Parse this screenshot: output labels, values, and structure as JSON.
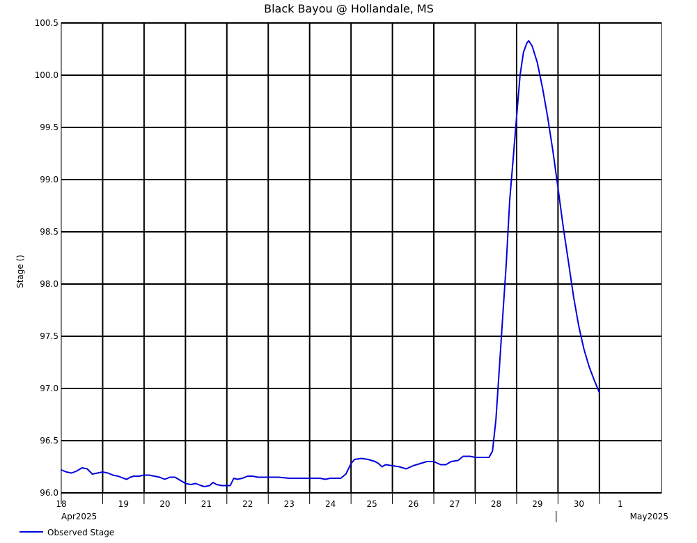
{
  "chart_data": {
    "type": "line",
    "title": "Black Bayou @ Hollandale, MS",
    "xlabel": "",
    "ylabel": "Stage ()",
    "x_range": [
      "2025-04-18T00:00",
      "2025-05-02T12:00"
    ],
    "ylim": [
      96.0,
      100.5
    ],
    "y_ticks": [
      "96.0",
      "96.5",
      "97.0",
      "97.5",
      "98.0",
      "98.5",
      "99.0",
      "99.5",
      "100.0",
      "100.5"
    ],
    "x_ticks": [
      "18",
      "19",
      "20",
      "21",
      "22",
      "23",
      "24",
      "25",
      "26",
      "27",
      "28",
      "29",
      "30",
      "1"
    ],
    "month_labels": [
      "Apr2025",
      "May2025"
    ],
    "grid": true,
    "legend_position": "bottom-left",
    "series": [
      {
        "name": "Observed Stage",
        "color": "#0000dd",
        "points": [
          [
            "2025-04-18T00:00",
            96.22
          ],
          [
            "2025-04-18T03:00",
            96.2
          ],
          [
            "2025-04-18T06:00",
            96.19
          ],
          [
            "2025-04-18T09:00",
            96.21
          ],
          [
            "2025-04-18T12:00",
            96.24
          ],
          [
            "2025-04-18T15:00",
            96.23
          ],
          [
            "2025-04-18T18:00",
            96.18
          ],
          [
            "2025-04-18T21:00",
            96.19
          ],
          [
            "2025-04-19T00:00",
            96.2
          ],
          [
            "2025-04-19T03:00",
            96.19
          ],
          [
            "2025-04-19T06:00",
            96.17
          ],
          [
            "2025-04-19T09:00",
            96.16
          ],
          [
            "2025-04-19T12:00",
            96.14
          ],
          [
            "2025-04-19T14:00",
            96.13
          ],
          [
            "2025-04-19T16:00",
            96.15
          ],
          [
            "2025-04-19T18:00",
            96.16
          ],
          [
            "2025-04-19T21:00",
            96.16
          ],
          [
            "2025-04-20T00:00",
            96.17
          ],
          [
            "2025-04-20T03:00",
            96.17
          ],
          [
            "2025-04-20T06:00",
            96.16
          ],
          [
            "2025-04-20T09:00",
            96.15
          ],
          [
            "2025-04-20T12:00",
            96.13
          ],
          [
            "2025-04-20T15:00",
            96.15
          ],
          [
            "2025-04-20T18:00",
            96.15
          ],
          [
            "2025-04-20T21:00",
            96.12
          ],
          [
            "2025-04-21T00:00",
            96.09
          ],
          [
            "2025-04-21T03:00",
            96.08
          ],
          [
            "2025-04-21T06:00",
            96.09
          ],
          [
            "2025-04-21T09:00",
            96.07
          ],
          [
            "2025-04-21T11:00",
            96.06
          ],
          [
            "2025-04-21T14:00",
            96.07
          ],
          [
            "2025-04-21T16:00",
            96.1
          ],
          [
            "2025-04-21T18:00",
            96.08
          ],
          [
            "2025-04-21T21:00",
            96.07
          ],
          [
            "2025-04-22T00:00",
            96.07
          ],
          [
            "2025-04-22T02:00",
            96.07
          ],
          [
            "2025-04-22T04:00",
            96.14
          ],
          [
            "2025-04-22T06:00",
            96.13
          ],
          [
            "2025-04-22T09:00",
            96.14
          ],
          [
            "2025-04-22T12:00",
            96.16
          ],
          [
            "2025-04-22T15:00",
            96.16
          ],
          [
            "2025-04-22T18:00",
            96.15
          ],
          [
            "2025-04-23T00:00",
            96.15
          ],
          [
            "2025-04-23T06:00",
            96.15
          ],
          [
            "2025-04-23T12:00",
            96.14
          ],
          [
            "2025-04-24T00:00",
            96.14
          ],
          [
            "2025-04-24T06:00",
            96.14
          ],
          [
            "2025-04-24T09:00",
            96.13
          ],
          [
            "2025-04-24T12:00",
            96.14
          ],
          [
            "2025-04-24T18:00",
            96.14
          ],
          [
            "2025-04-24T21:00",
            96.18
          ],
          [
            "2025-04-25T00:00",
            96.28
          ],
          [
            "2025-04-25T02:00",
            96.32
          ],
          [
            "2025-04-25T06:00",
            96.33
          ],
          [
            "2025-04-25T10:00",
            96.32
          ],
          [
            "2025-04-25T14:00",
            96.3
          ],
          [
            "2025-04-25T16:00",
            96.28
          ],
          [
            "2025-04-25T18:00",
            96.25
          ],
          [
            "2025-04-25T20:00",
            96.27
          ],
          [
            "2025-04-26T00:00",
            96.26
          ],
          [
            "2025-04-26T04:00",
            96.25
          ],
          [
            "2025-04-26T08:00",
            96.23
          ],
          [
            "2025-04-26T12:00",
            96.26
          ],
          [
            "2025-04-26T16:00",
            96.28
          ],
          [
            "2025-04-26T20:00",
            96.3
          ],
          [
            "2025-04-27T00:00",
            96.3
          ],
          [
            "2025-04-27T04:00",
            96.27
          ],
          [
            "2025-04-27T07:00",
            96.27
          ],
          [
            "2025-04-27T10:00",
            96.3
          ],
          [
            "2025-04-27T14:00",
            96.31
          ],
          [
            "2025-04-27T17:00",
            96.35
          ],
          [
            "2025-04-27T21:00",
            96.35
          ],
          [
            "2025-04-28T00:00",
            96.34
          ],
          [
            "2025-04-28T03:00",
            96.34
          ],
          [
            "2025-04-28T06:00",
            96.34
          ],
          [
            "2025-04-28T08:00",
            96.34
          ],
          [
            "2025-04-28T10:00",
            96.4
          ],
          [
            "2025-04-28T12:00",
            96.7
          ],
          [
            "2025-04-28T14:00",
            97.2
          ],
          [
            "2025-04-28T16:00",
            97.7
          ],
          [
            "2025-04-28T18:00",
            98.2
          ],
          [
            "2025-04-28T20:00",
            98.8
          ],
          [
            "2025-04-28T22:00",
            99.2
          ],
          [
            "2025-04-29T00:00",
            99.6
          ],
          [
            "2025-04-29T02:00",
            100.0
          ],
          [
            "2025-04-29T04:00",
            100.22
          ],
          [
            "2025-04-29T06:00",
            100.31
          ],
          [
            "2025-04-29T07:00",
            100.33
          ],
          [
            "2025-04-29T09:00",
            100.28
          ],
          [
            "2025-04-29T12:00",
            100.12
          ],
          [
            "2025-04-29T15:00",
            99.88
          ],
          [
            "2025-04-29T18:00",
            99.6
          ],
          [
            "2025-04-29T21:00",
            99.28
          ],
          [
            "2025-04-30T00:00",
            98.92
          ],
          [
            "2025-04-30T03:00",
            98.55
          ],
          [
            "2025-04-30T06:00",
            98.22
          ],
          [
            "2025-04-30T09:00",
            97.88
          ],
          [
            "2025-04-30T12:00",
            97.6
          ],
          [
            "2025-04-30T15:00",
            97.38
          ],
          [
            "2025-04-30T18:00",
            97.21
          ],
          [
            "2025-04-30T21:00",
            97.08
          ],
          [
            "2025-05-01T00:00",
            96.96
          ]
        ]
      }
    ]
  }
}
